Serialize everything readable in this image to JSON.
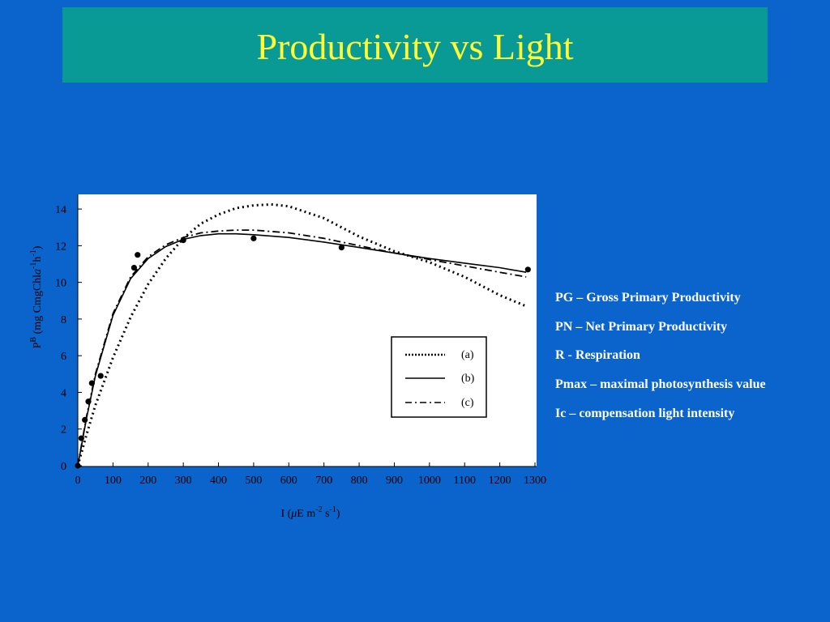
{
  "slide": {
    "title": "Productivity vs Light",
    "colors": {
      "background": "#0a64cc",
      "title_bar": "#0a9a96",
      "title_text": "#ffff33"
    }
  },
  "definitions": [
    "PG – Gross Primary Productivity",
    "PN – Net Primary Productivity",
    "R - Respiration",
    "Pmax – maximal photosynthesis value",
    "Ic – compensation light intensity"
  ],
  "chart_data": {
    "type": "line",
    "xlabel": {
      "pre": "I (",
      "mu": "μ",
      "mid": "E m",
      "sup1": "-2",
      "mid2": " s",
      "sup2": "-1",
      "post": ")"
    },
    "ylabel": {
      "p": "P",
      "sup_b": "B",
      "mid": " (mg CmgChl",
      "a": "a",
      "sup1": "-1",
      "h": "h",
      "sup2": "-1",
      "post": ")"
    },
    "xlim": [
      0,
      1300
    ],
    "ylim": [
      0,
      14.8
    ],
    "xticks": [
      0,
      100,
      200,
      300,
      400,
      500,
      600,
      700,
      800,
      900,
      1000,
      1100,
      1200,
      1300
    ],
    "yticks": [
      0,
      2,
      4,
      6,
      8,
      10,
      12,
      14
    ],
    "grid": false,
    "legend_position": "lower-right",
    "points": {
      "x": [
        0,
        10,
        20,
        30,
        40,
        65,
        160,
        170,
        300,
        500,
        750,
        1280
      ],
      "y": [
        0,
        1.5,
        2.5,
        3.5,
        4.5,
        4.9,
        10.8,
        11.5,
        12.3,
        12.4,
        11.9,
        10.7
      ]
    },
    "series": [
      {
        "name": "(a)",
        "style": "dotted",
        "x": [
          0,
          25,
          50,
          100,
          150,
          200,
          250,
          300,
          350,
          400,
          450,
          500,
          550,
          600,
          700,
          800,
          900,
          1000,
          1100,
          1200,
          1275
        ],
        "y": [
          0,
          1.7,
          3.3,
          5.9,
          8.1,
          9.9,
          11.3,
          12.4,
          13.2,
          13.7,
          14.05,
          14.2,
          14.25,
          14.15,
          13.5,
          12.5,
          11.7,
          11.1,
          10.3,
          9.3,
          8.7
        ]
      },
      {
        "name": "(b)",
        "style": "solid",
        "x": [
          0,
          25,
          50,
          100,
          150,
          200,
          250,
          300,
          350,
          400,
          450,
          500,
          600,
          700,
          800,
          900,
          1000,
          1100,
          1200,
          1275
        ],
        "y": [
          0,
          2.6,
          4.9,
          8.2,
          10.2,
          11.3,
          11.95,
          12.35,
          12.55,
          12.65,
          12.65,
          12.6,
          12.45,
          12.2,
          11.9,
          11.6,
          11.3,
          11.05,
          10.8,
          10.55
        ]
      },
      {
        "name": "(c)",
        "style": "dash-dot",
        "x": [
          0,
          25,
          50,
          100,
          150,
          200,
          250,
          300,
          350,
          400,
          450,
          500,
          600,
          700,
          800,
          900,
          1000,
          1100,
          1200,
          1275
        ],
        "y": [
          0,
          2.7,
          5.0,
          8.3,
          10.3,
          11.4,
          12.05,
          12.45,
          12.7,
          12.8,
          12.85,
          12.85,
          12.7,
          12.4,
          12.0,
          11.6,
          11.25,
          10.9,
          10.55,
          10.3
        ]
      }
    ]
  }
}
